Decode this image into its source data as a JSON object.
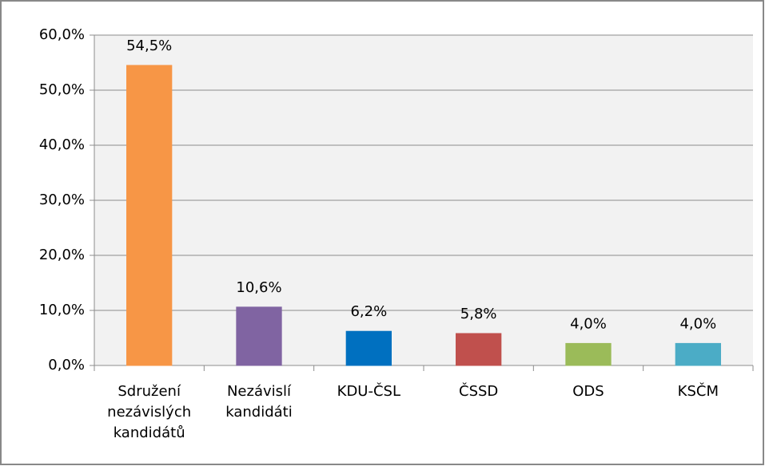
{
  "chart_data": {
    "type": "bar",
    "categories": [
      "Sdružení nezávislých kandidátů",
      "Nezávislí kandidáti",
      "KDU-ČSL",
      "ČSSD",
      "ODS",
      "KSČM"
    ],
    "values": [
      54.5,
      10.6,
      6.2,
      5.8,
      4.0,
      4.0
    ],
    "value_labels": [
      "54,5%",
      "10,6%",
      "6,2%",
      "5,8%",
      "4,0%",
      "4,0%"
    ],
    "colors": [
      "#f79646",
      "#8064a2",
      "#0070c0",
      "#c0504d",
      "#9bbb59",
      "#4bacc6"
    ],
    "ylim": [
      0,
      60
    ],
    "yticks": [
      {
        "value": 0,
        "label": "0,0%"
      },
      {
        "value": 10,
        "label": "10,0%"
      },
      {
        "value": 20,
        "label": "20,0%"
      },
      {
        "value": 30,
        "label": "30,0%"
      },
      {
        "value": 40,
        "label": "40,0%"
      },
      {
        "value": 50,
        "label": "50,0%"
      },
      {
        "value": 60,
        "label": "60,0%"
      }
    ],
    "grid": true
  }
}
